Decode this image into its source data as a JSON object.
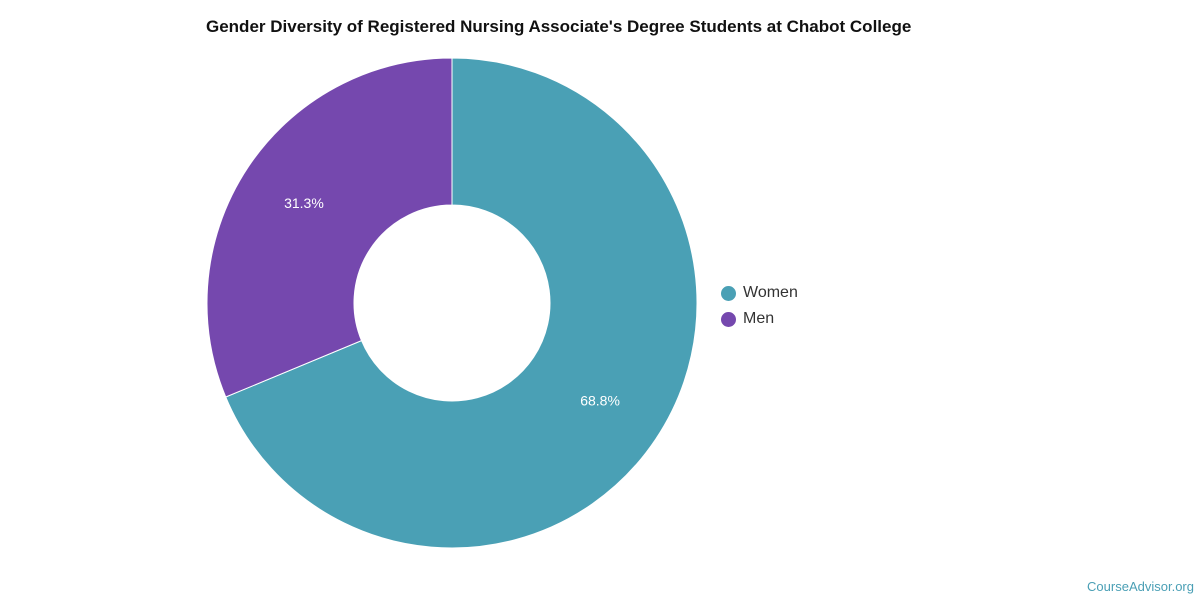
{
  "chart_data": {
    "type": "pie",
    "title": "Gender Diversity of Registered Nursing Associate's Degree Students at Chabot College",
    "donut": true,
    "categories": [
      "Women",
      "Men"
    ],
    "values": [
      68.8,
      31.3
    ],
    "labels": [
      "68.8%",
      "31.3%"
    ],
    "colors": [
      "#4aa0b5",
      "#7548ae"
    ],
    "legend": "right"
  },
  "footer": {
    "source": "CourseAdvisor.org"
  }
}
